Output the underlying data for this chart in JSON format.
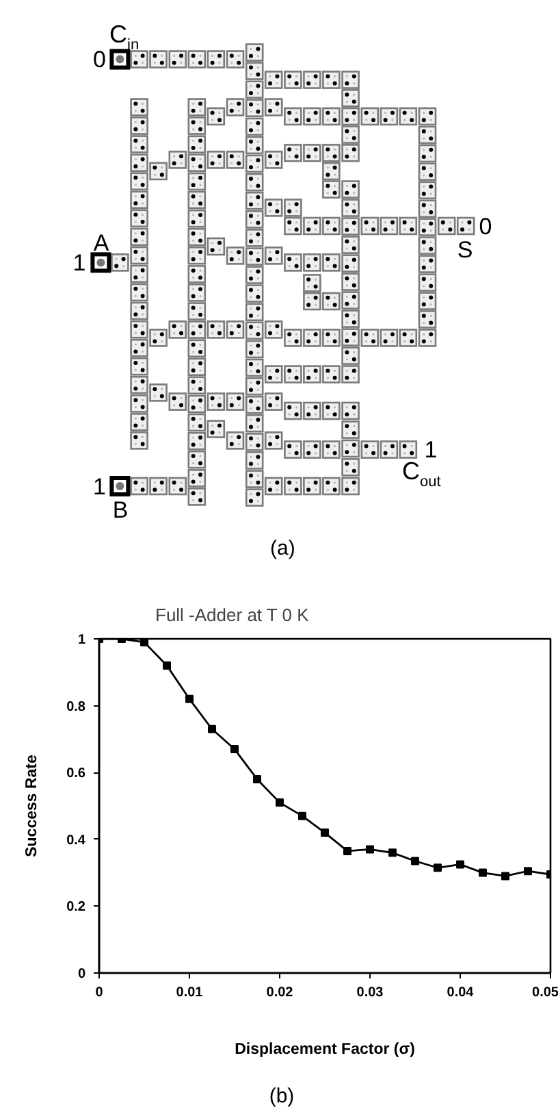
{
  "chart_data": {
    "type": "line",
    "title": "Full -Adder at T 0 K",
    "xlabel": "Displacement Factor (σ)",
    "ylabel": "Success Rate",
    "x": [
      0,
      0.0025,
      0.005,
      0.0075,
      0.01,
      0.0125,
      0.015,
      0.0175,
      0.02,
      0.0225,
      0.025,
      0.0275,
      0.03,
      0.0325,
      0.035,
      0.0375,
      0.04,
      0.0425,
      0.045,
      0.0475,
      0.05
    ],
    "series": [
      {
        "color": "#000000",
        "values": [
          1,
          1,
          0.99,
          0.92,
          0.82,
          0.73,
          0.67,
          0.58,
          0.51,
          0.47,
          0.42,
          0.365,
          0.37,
          0.36,
          0.335,
          0.315,
          0.325,
          0.3,
          0.29,
          0.305,
          0.295
        ]
      }
    ],
    "xlim": [
      0,
      0.05
    ],
    "ylim": [
      0,
      1
    ],
    "xticks": [
      0,
      0.01,
      0.02,
      0.03,
      0.04,
      0.05
    ],
    "yticks": [
      0,
      0.2,
      0.4,
      0.6,
      0.8,
      1
    ],
    "marker": "square",
    "line_style": "solid",
    "grid": false,
    "annotations": [
      "C$_{in}$",
      "0",
      "A",
      "1",
      "S",
      "0",
      "1",
      "C$_{out}$",
      "1",
      "B",
      "(a)",
      "(b)"
    ]
  }
}
